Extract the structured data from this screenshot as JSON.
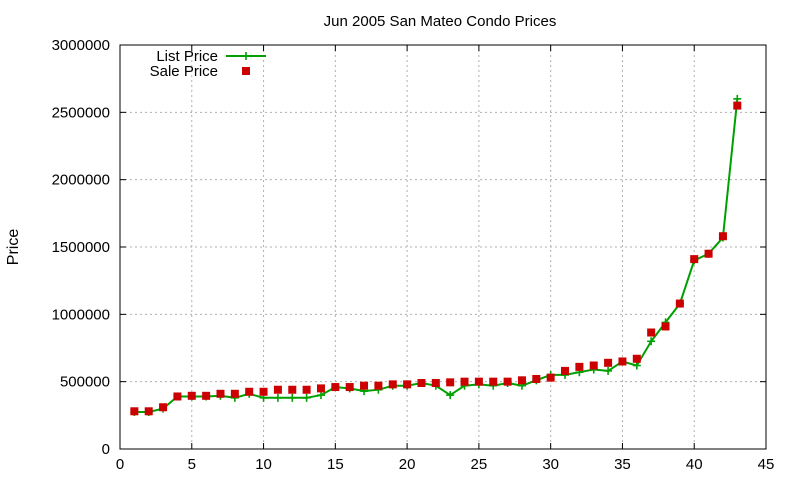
{
  "chart_data": {
    "type": "line",
    "title": "Jun 2005 San Mateo Condo Prices",
    "xlabel": "",
    "ylabel": "Price",
    "xlim": [
      0,
      45
    ],
    "ylim": [
      0,
      3000000
    ],
    "x_ticks": [
      0,
      5,
      10,
      15,
      20,
      25,
      30,
      35,
      40,
      45
    ],
    "y_ticks": [
      0,
      500000,
      1000000,
      1500000,
      2000000,
      2500000,
      3000000
    ],
    "x_tick_labels": [
      "0",
      "5",
      "10",
      "15",
      "20",
      "25",
      "30",
      "35",
      "40",
      "45"
    ],
    "y_tick_labels": [
      "0",
      "500000",
      "1000000",
      "1500000",
      "2000000",
      "2500000",
      "3000000"
    ],
    "grid": true,
    "legend_position": "top-left",
    "x": [
      1,
      2,
      3,
      4,
      5,
      6,
      7,
      8,
      9,
      10,
      11,
      12,
      13,
      14,
      15,
      16,
      17,
      18,
      19,
      20,
      21,
      22,
      23,
      24,
      25,
      26,
      27,
      28,
      29,
      30,
      31,
      32,
      33,
      34,
      35,
      36,
      37,
      38,
      39,
      40,
      41,
      42,
      43
    ],
    "series": [
      {
        "name": "List Price",
        "style": "lines-points",
        "marker": "plus",
        "color": "#00a000",
        "values": [
          275000,
          275000,
          300000,
          390000,
          390000,
          390000,
          395000,
          380000,
          410000,
          380000,
          380000,
          380000,
          380000,
          400000,
          460000,
          450000,
          430000,
          440000,
          470000,
          470000,
          490000,
          470000,
          400000,
          470000,
          480000,
          470000,
          490000,
          470000,
          510000,
          550000,
          550000,
          570000,
          590000,
          580000,
          650000,
          620000,
          800000,
          940000,
          1080000,
          1400000,
          1450000,
          1570000,
          2600000
        ]
      },
      {
        "name": "Sale Price",
        "style": "points",
        "marker": "square",
        "color": "#cc0000",
        "values": [
          280000,
          280000,
          310000,
          390000,
          395000,
          395000,
          410000,
          410000,
          425000,
          425000,
          440000,
          440000,
          440000,
          450000,
          460000,
          460000,
          470000,
          470000,
          480000,
          480000,
          490000,
          490000,
          495000,
          500000,
          500000,
          500000,
          500000,
          510000,
          520000,
          530000,
          580000,
          610000,
          620000,
          640000,
          650000,
          670000,
          865000,
          910000,
          1080000,
          1410000,
          1450000,
          1580000,
          2550000
        ]
      }
    ]
  }
}
